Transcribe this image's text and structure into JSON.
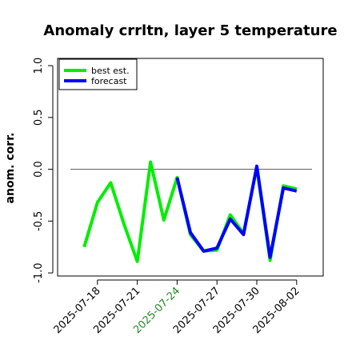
{
  "chart_data": {
    "type": "line",
    "title": "Anomaly crrltn, layer 5 temperature",
    "ylabel": "anom. corr.",
    "x": [
      "2025-07-17",
      "2025-07-18",
      "2025-07-19",
      "2025-07-20",
      "2025-07-21",
      "2025-07-22",
      "2025-07-23",
      "2025-07-24",
      "2025-07-25",
      "2025-07-26",
      "2025-07-27",
      "2025-07-28",
      "2025-07-29",
      "2025-07-30",
      "2025-07-31",
      "2025-08-01",
      "2025-08-02"
    ],
    "series": [
      {
        "name": "best est.",
        "color": "#00ee00",
        "values": [
          -0.75,
          -0.32,
          -0.13,
          -0.53,
          -0.89,
          0.07,
          -0.49,
          -0.08,
          -0.63,
          -0.79,
          -0.78,
          -0.44,
          -0.62,
          0.02,
          -0.88,
          -0.16,
          -0.19
        ]
      },
      {
        "name": "forecast",
        "color": "#0000ff",
        "values": [
          null,
          null,
          null,
          null,
          null,
          null,
          null,
          -0.08,
          -0.61,
          -0.79,
          -0.76,
          -0.48,
          -0.63,
          0.03,
          -0.85,
          -0.18,
          -0.21
        ]
      }
    ],
    "xlim": [
      "2025-07-15",
      "2025-08-04"
    ],
    "xticks": [
      "2025-07-18",
      "2025-07-21",
      "2025-07-24",
      "2025-07-27",
      "2025-07-30",
      "2025-08-02"
    ],
    "xtick_colors": [
      "#000000",
      "#000000",
      "#228b22",
      "#000000",
      "#000000",
      "#000000"
    ],
    "ylim": [
      -1.03,
      1.07
    ],
    "yticks": [
      {
        "value": -1,
        "label": "-1.0"
      },
      {
        "value": -0.5,
        "label": "-0.5"
      },
      {
        "value": 0,
        "label": "0.0"
      },
      {
        "value": 0.5,
        "label": "0.5"
      },
      {
        "value": 1,
        "label": "1.0"
      }
    ],
    "reference_line": 0,
    "legend": "top-left"
  }
}
